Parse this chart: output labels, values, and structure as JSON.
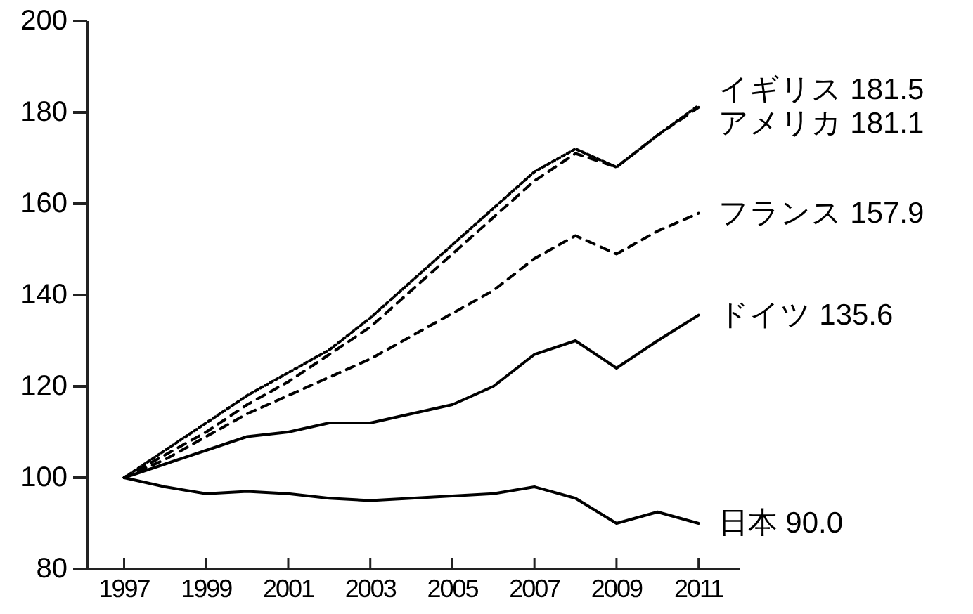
{
  "chart_data": {
    "type": "line",
    "x": [
      1997,
      1998,
      1999,
      2000,
      2001,
      2002,
      2003,
      2004,
      2005,
      2006,
      2007,
      2008,
      2009,
      2010,
      2011
    ],
    "xlim": [
      1996.1,
      2012
    ],
    "xticks": [
      1997,
      1999,
      2001,
      2003,
      2005,
      2007,
      2009,
      2011
    ],
    "ylim": [
      80,
      200
    ],
    "yticks": [
      80,
      100,
      120,
      140,
      160,
      180,
      200
    ],
    "grid": false,
    "legend": false,
    "marker": "none",
    "series": [
      {
        "name": "イギリス",
        "color": "#000000",
        "line_style": "dotted",
        "values": [
          100,
          106,
          112,
          118,
          123,
          128,
          135,
          143,
          151,
          159,
          167,
          172,
          168,
          175,
          181.5
        ],
        "value_labels": [
          null,
          null,
          null,
          null,
          null,
          null,
          null,
          null,
          null,
          null,
          null,
          null,
          null,
          null,
          "181.5"
        ]
      },
      {
        "name": "アメリカ",
        "color": "#000000",
        "line_style": "dashed",
        "values": [
          100,
          105,
          110,
          116,
          121,
          127,
          133,
          141,
          149,
          157,
          165,
          171,
          168,
          175,
          181.1
        ],
        "value_labels": [
          null,
          null,
          null,
          null,
          null,
          null,
          null,
          null,
          null,
          null,
          null,
          null,
          null,
          null,
          "181.1"
        ]
      },
      {
        "name": "フランス",
        "color": "#000000",
        "line_style": "dashed",
        "values": [
          100,
          104,
          109,
          114,
          118,
          122,
          126,
          131,
          136,
          141,
          148,
          153,
          149,
          154,
          157.9
        ],
        "value_labels": [
          null,
          null,
          null,
          null,
          null,
          null,
          null,
          null,
          null,
          null,
          null,
          null,
          null,
          null,
          "157.9"
        ]
      },
      {
        "name": "ドイツ",
        "color": "#000000",
        "line_style": "solid",
        "values": [
          100,
          103,
          106,
          109,
          110,
          112,
          112,
          114,
          116,
          120,
          127,
          130,
          124,
          130,
          135.6
        ],
        "value_labels": [
          null,
          null,
          null,
          null,
          null,
          null,
          null,
          null,
          null,
          null,
          null,
          null,
          null,
          null,
          "135.6"
        ]
      },
      {
        "name": "日本",
        "color": "#000000",
        "line_style": "solid",
        "values": [
          100,
          98,
          96.5,
          97,
          96.5,
          95.5,
          95,
          95.5,
          96,
          96.5,
          98,
          95.5,
          90,
          92.5,
          90.0
        ],
        "value_labels": [
          null,
          null,
          null,
          null,
          null,
          null,
          null,
          null,
          null,
          null,
          null,
          null,
          null,
          null,
          "90.0"
        ]
      }
    ]
  }
}
